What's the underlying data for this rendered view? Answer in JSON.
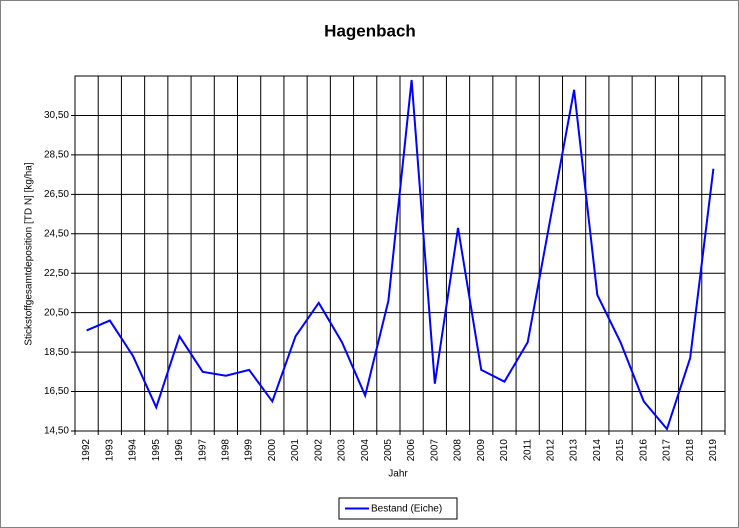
{
  "chart_data": {
    "type": "line",
    "title": "Hagenbach",
    "x_label": "Jahr",
    "y_label": "Stickstoffgesamtdeposition [TD N] [kg/ha]",
    "categories": [
      "1992",
      "1993",
      "1994",
      "1995",
      "1996",
      "1997",
      "1998",
      "1999",
      "2000",
      "2001",
      "2002",
      "2003",
      "2004",
      "2005",
      "2006",
      "2007",
      "2008",
      "2009",
      "2010",
      "2011",
      "2012",
      "2013",
      "2014",
      "2015",
      "2016",
      "2017",
      "2018",
      "2019"
    ],
    "series": [
      {
        "name": "Bestand (Eiche)",
        "color": "#0000ff",
        "values": [
          19.6,
          20.1,
          18.3,
          15.7,
          19.3,
          17.5,
          17.3,
          17.6,
          16.0,
          19.3,
          21.0,
          19.0,
          16.3,
          21.1,
          32.3,
          16.9,
          24.8,
          17.6,
          17.0,
          19.0,
          25.4,
          31.8,
          21.4,
          19.0,
          16.0,
          14.6,
          18.2,
          27.8
        ]
      }
    ],
    "ylim": [
      14.5,
      32.5
    ],
    "yticks": [
      {
        "value": 14.5,
        "label": "14,50"
      },
      {
        "value": 16.5,
        "label": "16,50"
      },
      {
        "value": 18.5,
        "label": "18,50"
      },
      {
        "value": 20.5,
        "label": "20,50"
      },
      {
        "value": 22.5,
        "label": "22,50"
      },
      {
        "value": 24.5,
        "label": "24,50"
      },
      {
        "value": 26.5,
        "label": "26,50"
      },
      {
        "value": 28.5,
        "label": "28,50"
      },
      {
        "value": 30.5,
        "label": "30,50"
      }
    ],
    "grid": true,
    "legend": "bottom"
  }
}
